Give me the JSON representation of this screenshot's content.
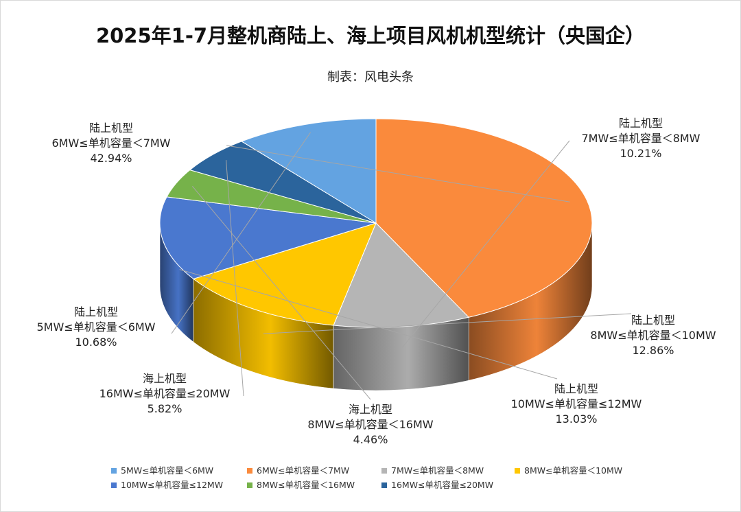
{
  "chart_data": {
    "type": "pie",
    "title": "2025年1-7月整机商陆上、海上项目风机机型统计（央国企）",
    "subtitle": "制表：风电头条",
    "unit": "%",
    "slices": [
      {
        "legend": "6MW≤单机容量＜7MW",
        "category": "陆上机型",
        "range": "6MW≤单机容量＜7MW",
        "value": 42.94,
        "label": "42.94%",
        "color": "#FA8A3C"
      },
      {
        "legend": "7MW≤单机容量＜8MW",
        "category": "陆上机型",
        "range": "7MW≤单机容量＜8MW",
        "value": 10.21,
        "label": "10.21%",
        "color": "#B5B5B5"
      },
      {
        "legend": "8MW≤单机容量＜10MW",
        "category": "陆上机型",
        "range": "8MW≤单机容量＜10MW",
        "value": 12.86,
        "label": "12.86%",
        "color": "#FFC700"
      },
      {
        "legend": "10MW≤单机容量≤12MW",
        "category": "陆上机型",
        "range": "10MW≤单机容量≤12MW",
        "value": 13.03,
        "label": "13.03%",
        "color": "#4A78CF"
      },
      {
        "legend": "8MW≤单机容量＜16MW",
        "category": "海上机型",
        "range": "8MW≤单机容量＜16MW",
        "value": 4.46,
        "label": "4.46%",
        "color": "#76B24A"
      },
      {
        "legend": "16MW≤单机容量≤20MW",
        "category": "海上机型",
        "range": "16MW≤单机容量≤20MW",
        "value": 5.82,
        "label": "5.82%",
        "color": "#2B649C"
      },
      {
        "legend": "5MW≤单机容量＜6MW",
        "category": "陆上机型",
        "range": "5MW≤单机容量＜6MW",
        "value": 10.68,
        "label": "10.68%",
        "color": "#63A3E1"
      }
    ],
    "legend_order": [
      "5MW≤单机容量＜6MW",
      "6MW≤单机容量＜7MW",
      "7MW≤单机容量＜8MW",
      "8MW≤单机容量＜10MW",
      "10MW≤单机容量≤12MW",
      "8MW≤单机容量＜16MW",
      "16MW≤单机容量≤20MW"
    ],
    "legend_position": "bottom",
    "style": "3d-pie"
  }
}
